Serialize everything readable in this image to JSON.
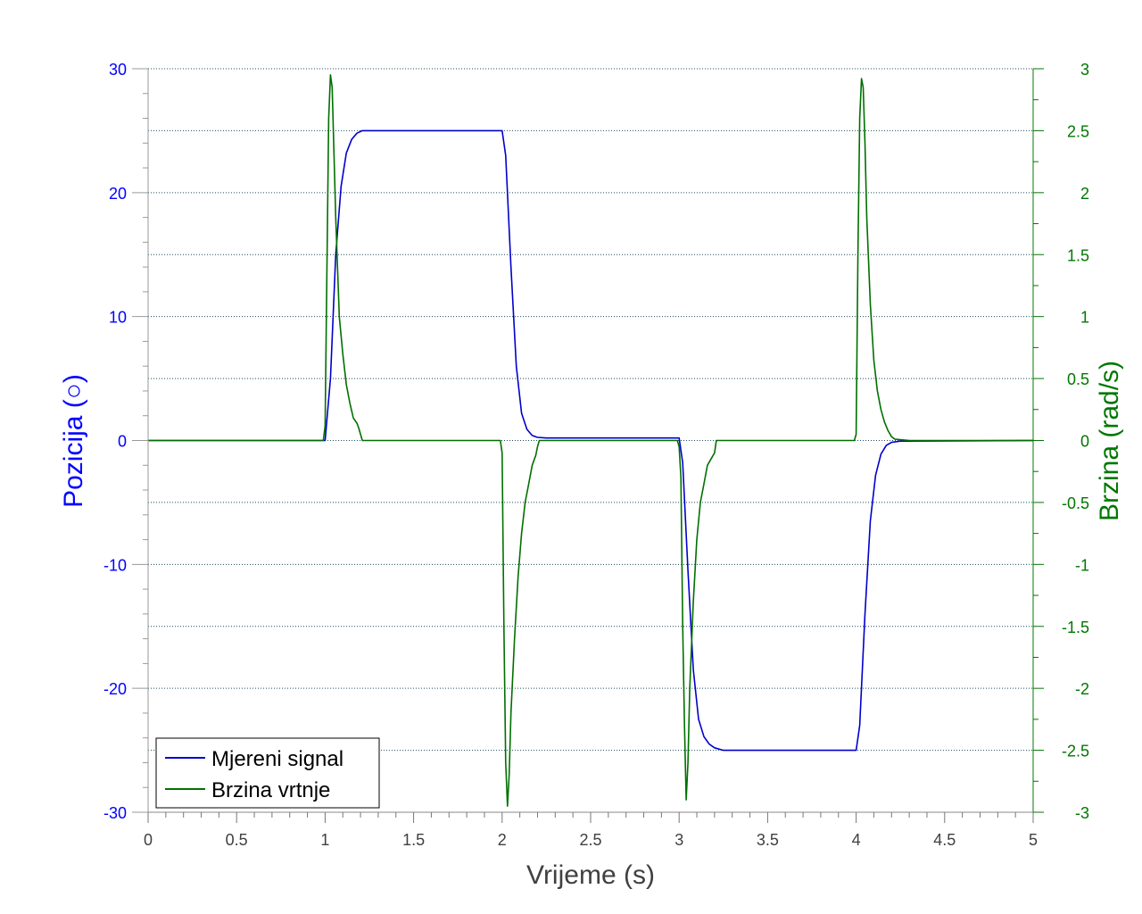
{
  "chart_data": {
    "type": "line",
    "xlabel": "Vrijeme (s)",
    "ylabel_left": "Pozicija (○)",
    "ylabel_right": "Brzina (rad/s)",
    "xlim": [
      0,
      5
    ],
    "ylim_left": [
      -30,
      30
    ],
    "ylim_right": [
      -3,
      3
    ],
    "x_ticks": [
      "0",
      "0.5",
      "1",
      "1.5",
      "2",
      "2.5",
      "3",
      "3.5",
      "4",
      "4.5",
      "5"
    ],
    "y_left_ticks": [
      "30",
      "20",
      "10",
      "0",
      "-10",
      "-20",
      "-30"
    ],
    "y_right_ticks": [
      "3",
      "2.5",
      "2",
      "1.5",
      "1",
      "0.5",
      "0",
      "-0.5",
      "-1",
      "-1.5",
      "-2",
      "-2.5",
      "-3"
    ],
    "grid": true,
    "legend_position": "bottom-left",
    "colors": {
      "left_axis": "#0000ff",
      "right_axis": "#007700",
      "grid": "#1f4f5f"
    },
    "series": [
      {
        "name": "Mjereni signal",
        "axis": "left",
        "color": "#0000cc",
        "x": [
          0,
          1.0,
          1.03,
          1.06,
          1.09,
          1.12,
          1.15,
          1.18,
          1.21,
          1.25,
          2.0,
          2.02,
          2.05,
          2.08,
          2.11,
          2.14,
          2.17,
          2.2,
          2.25,
          3.0,
          3.02,
          3.05,
          3.08,
          3.11,
          3.14,
          3.17,
          3.2,
          3.25,
          4.0,
          4.02,
          4.05,
          4.08,
          4.11,
          4.14,
          4.17,
          4.2,
          4.25,
          5.0
        ],
        "y": [
          0,
          0,
          5,
          15,
          20.5,
          23.2,
          24.3,
          24.8,
          25,
          25,
          25,
          23,
          14,
          6,
          2.2,
          0.9,
          0.4,
          0.25,
          0.2,
          0.2,
          -1.8,
          -10.5,
          -18.5,
          -22.5,
          -23.9,
          -24.5,
          -24.8,
          -25,
          -25,
          -23,
          -14,
          -6.5,
          -2.8,
          -1.1,
          -0.4,
          -0.15,
          -0.05,
          0
        ]
      },
      {
        "name": "Brzina vrtnje",
        "axis": "right",
        "color": "#007000",
        "x": [
          0,
          0.99,
          1.0,
          1.02,
          1.03,
          1.04,
          1.06,
          1.08,
          1.1,
          1.12,
          1.14,
          1.16,
          1.18,
          1.19,
          1.2,
          1.21,
          1.22,
          1.3,
          1.99,
          2.0,
          2.01,
          2.02,
          2.03,
          2.04,
          2.05,
          2.07,
          2.09,
          2.11,
          2.13,
          2.15,
          2.17,
          2.19,
          2.2,
          2.21,
          2.22,
          2.99,
          3.0,
          3.01,
          3.02,
          3.03,
          3.04,
          3.05,
          3.06,
          3.08,
          3.1,
          3.12,
          3.14,
          3.16,
          3.18,
          3.2,
          3.21,
          3.22,
          3.99,
          4.0,
          4.01,
          4.02,
          4.03,
          4.04,
          4.05,
          4.06,
          4.08,
          4.1,
          4.12,
          4.14,
          4.16,
          4.18,
          4.2,
          4.22,
          4.3,
          5.0
        ],
        "y": [
          0,
          0,
          0.12,
          2.6,
          2.95,
          2.85,
          1.8,
          1.0,
          0.7,
          0.45,
          0.3,
          0.18,
          0.14,
          0.1,
          0.05,
          0.0,
          0.0,
          0.0,
          0,
          -0.1,
          -1.5,
          -2.6,
          -2.95,
          -2.7,
          -2.2,
          -1.6,
          -1.1,
          -0.75,
          -0.5,
          -0.35,
          -0.2,
          -0.12,
          -0.05,
          0.0,
          0.0,
          0,
          -0.05,
          -0.3,
          -1.5,
          -2.3,
          -2.9,
          -2.6,
          -2.0,
          -1.3,
          -0.8,
          -0.5,
          -0.35,
          -0.2,
          -0.15,
          -0.1,
          0.0,
          0.0,
          0,
          0.05,
          1.5,
          2.6,
          2.92,
          2.85,
          2.4,
          1.8,
          1.1,
          0.65,
          0.4,
          0.25,
          0.15,
          0.08,
          0.03,
          0.01,
          0.0,
          0
        ]
      }
    ]
  }
}
